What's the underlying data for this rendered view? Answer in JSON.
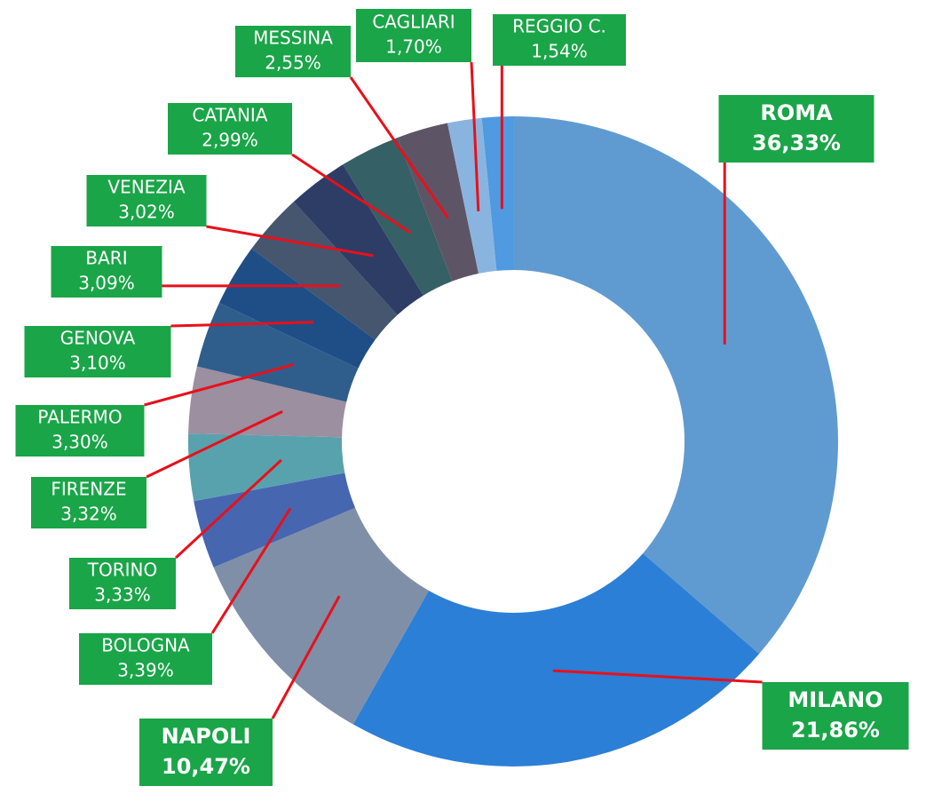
{
  "chart_data": {
    "type": "pie",
    "donut": true,
    "categories": [
      "ROMA",
      "MILANO",
      "NAPOLI",
      "BOLOGNA",
      "TORINO",
      "FIRENZE",
      "PALERMO",
      "GENOVA",
      "BARI",
      "VENEZIA",
      "CATANIA",
      "MESSINA",
      "CAGLIARI",
      "REGGIO C."
    ],
    "values": [
      36.33,
      21.86,
      10.47,
      3.39,
      3.33,
      3.32,
      3.3,
      3.1,
      3.09,
      3.02,
      2.99,
      2.55,
      1.7,
      1.54
    ],
    "value_labels": [
      "36,33%",
      "21,86%",
      "10,47%",
      "3,39%",
      "3,33%",
      "3,32%",
      "3,30%",
      "3,10%",
      "3,09%",
      "3,02%",
      "2,99%",
      "2,55%",
      "1,70%",
      "1,54%"
    ],
    "colors": [
      "#5f9bd1",
      "#2b7fd6",
      "#7f8fa8",
      "#4766b0",
      "#58a2ae",
      "#9b8fa0",
      "#2f5e8c",
      "#1f4e87",
      "#45566e",
      "#2e3d66",
      "#356066",
      "#5d5566",
      "#8ab4e0",
      "#4f9ae0"
    ],
    "label_color": "#1aa548",
    "leader_color": "#e8101a"
  }
}
